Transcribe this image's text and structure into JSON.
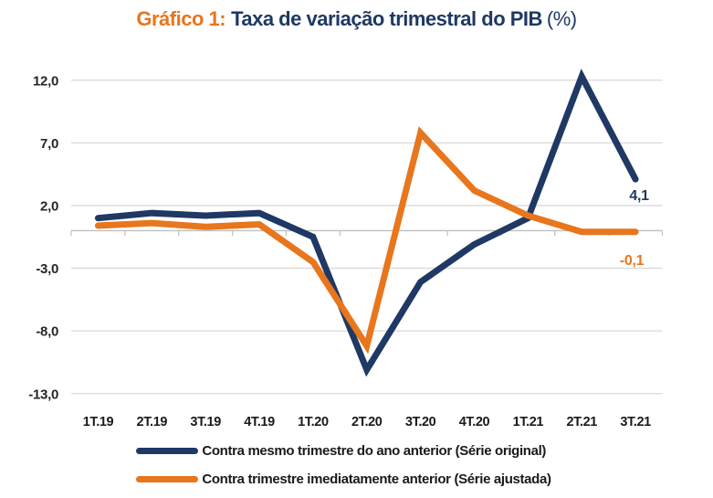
{
  "title": {
    "prefix": "Gráfico 1:",
    "main": "Taxa de variação trimestral do PIB",
    "suffix": "(%)"
  },
  "colors": {
    "navy": "#1F3864",
    "orange": "#E8761D",
    "grid": "#D9D9D9",
    "axis": "#BFBFBF",
    "tick_text": "#262626"
  },
  "chart_data": {
    "type": "line",
    "categories": [
      "1T.19",
      "2T.19",
      "3T.19",
      "4T.19",
      "1T.20",
      "2T.20",
      "3T.20",
      "4T.20",
      "1T.21",
      "2T.21",
      "3T.21"
    ],
    "series": [
      {
        "name": "Contra mesmo trimestre do ano anterior (Série original)",
        "color": "#1F3864",
        "values": [
          1.0,
          1.4,
          1.2,
          1.4,
          -0.5,
          -11.1,
          -4.1,
          -1.1,
          1.0,
          12.3,
          4.1
        ],
        "end_label": "4,1"
      },
      {
        "name": "Contra trimestre imediatamente anterior (Série ajustada)",
        "color": "#E8761D",
        "values": [
          0.4,
          0.6,
          0.3,
          0.5,
          -2.5,
          -9.2,
          7.8,
          3.2,
          1.2,
          -0.1,
          -0.1
        ],
        "end_label": "-0,1"
      }
    ],
    "y_ticks": [
      "12,0",
      "7,0",
      "2,0",
      "-3,0",
      "-8,0",
      "-13,0"
    ],
    "y_tick_values": [
      12,
      7,
      2,
      -3,
      -8,
      -13
    ],
    "ylim": [
      -13,
      12
    ],
    "xlabel": "",
    "ylabel": "",
    "grid": true,
    "legend_position": "bottom"
  }
}
